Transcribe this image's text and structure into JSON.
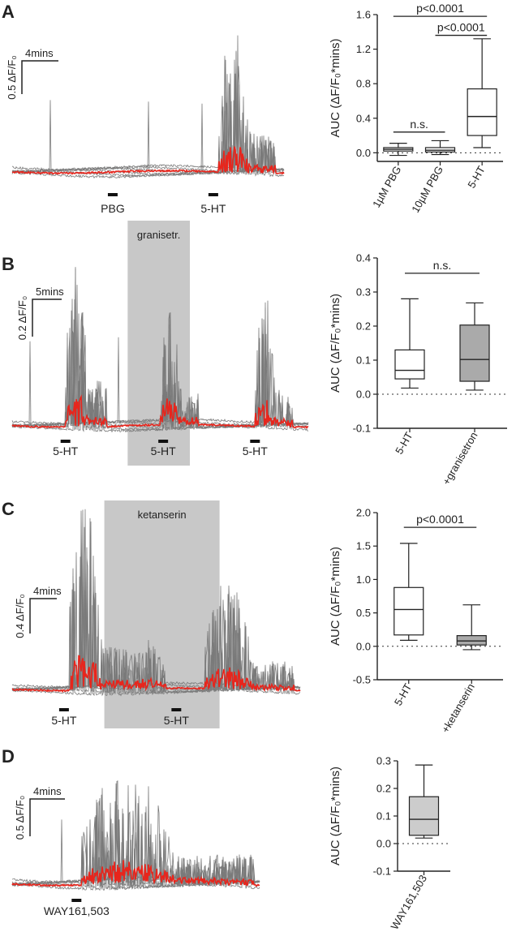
{
  "figure": {
    "panels": [
      {
        "letter": "A",
        "trace": {
          "scale_y_label": "0.5 ΔF/F₀",
          "scale_x_label": "4mins",
          "stimuli": [
            {
              "label": "PBG",
              "time": 0.37
            },
            {
              "label": "5-HT",
              "time": 0.74
            }
          ],
          "shaded": null,
          "activity": [
            {
              "start": 0.76,
              "end": 0.97,
              "amp": 0.95
            }
          ],
          "sparse_spikes": [
            0.14,
            0.5,
            0.7
          ]
        }
      },
      {
        "letter": "B",
        "trace": {
          "scale_y_label": "0.2 ΔF/F₀",
          "scale_x_label": "5mins",
          "stimuli": [
            {
              "label": "5-HT",
              "time": 0.18
            },
            {
              "label": "5-HT",
              "time": 0.51
            },
            {
              "label": "5-HT",
              "time": 0.82
            }
          ],
          "shaded": {
            "label": "granisetr.",
            "start": 0.39,
            "end": 0.6
          },
          "activity": [
            {
              "start": 0.18,
              "end": 0.32,
              "amp": 0.9
            },
            {
              "start": 0.5,
              "end": 0.63,
              "amp": 0.7
            },
            {
              "start": 0.82,
              "end": 0.95,
              "amp": 0.75
            }
          ],
          "sparse_spikes": [
            0.06,
            0.36
          ]
        }
      },
      {
        "letter": "C",
        "trace": {
          "scale_y_label": "0.4 ΔF/F₀",
          "scale_x_label": "4mins",
          "stimuli": [
            {
              "label": "5-HT",
              "time": 0.18
            },
            {
              "label": "5-HT",
              "time": 0.57
            }
          ],
          "shaded": {
            "label": "ketanserin",
            "start": 0.32,
            "end": 0.72
          },
          "activity": [
            {
              "start": 0.2,
              "end": 0.4,
              "amp": 1.0
            },
            {
              "start": 0.4,
              "end": 0.66,
              "amp": 0.25
            },
            {
              "start": 0.67,
              "end": 0.98,
              "amp": 0.55
            }
          ],
          "sparse_spikes": []
        }
      },
      {
        "letter": "D",
        "trace": {
          "scale_y_label": "0.5 ΔF/F₀",
          "scale_x_label": "4mins",
          "stimuli": [
            {
              "label": "WAY161,503",
              "time": 0.26
            }
          ],
          "shaded": null,
          "activity": [
            {
              "start": 0.28,
              "end": 0.98,
              "amp": 0.8
            }
          ],
          "sparse_spikes": [
            0.2
          ]
        }
      }
    ]
  },
  "chart_data": [
    {
      "type": "boxplot",
      "panel": "A",
      "ylabel": "AUC (ΔF/F₀*mins)",
      "ylim": [
        -0.1,
        1.6
      ],
      "yticks": [
        0.0,
        0.4,
        0.8,
        1.2,
        1.6
      ],
      "yticklabels": [
        "0.0",
        "0.4",
        "0.8",
        "1.2",
        "1.6"
      ],
      "categories": [
        "1µM PBG",
        "10µM PBG",
        "5-HT"
      ],
      "boxes": [
        {
          "min": -0.03,
          "q1": 0.02,
          "median": 0.04,
          "q3": 0.06,
          "max": 0.11,
          "fill": "#ffffff"
        },
        {
          "min": -0.02,
          "q1": 0.01,
          "median": 0.03,
          "q3": 0.06,
          "max": 0.14,
          "fill": "#ffffff"
        },
        {
          "min": 0.06,
          "q1": 0.2,
          "median": 0.42,
          "q3": 0.74,
          "max": 1.32,
          "fill": "#ffffff"
        }
      ],
      "comparisons": [
        {
          "label": "p<0.0001",
          "from": 0,
          "to": 2,
          "y": 1.58
        },
        {
          "label": "p<0.0001",
          "from": 1,
          "to": 2,
          "y": 1.36
        },
        {
          "label": "n.s.",
          "from": 0,
          "to": 1,
          "y": 0.24
        }
      ]
    },
    {
      "type": "boxplot",
      "panel": "B",
      "ylabel": "AUC (ΔF/F₀*mins)",
      "ylim": [
        -0.1,
        0.4
      ],
      "yticks": [
        -0.1,
        0.0,
        0.1,
        0.2,
        0.3,
        0.4
      ],
      "yticklabels": [
        "-0.1",
        "0.0",
        "0.1",
        "0.2",
        "0.3",
        "0.4"
      ],
      "categories": [
        "5-HT",
        "+granisetron"
      ],
      "boxes": [
        {
          "min": 0.018,
          "q1": 0.045,
          "median": 0.07,
          "q3": 0.13,
          "max": 0.28,
          "fill": "#ffffff"
        },
        {
          "min": 0.012,
          "q1": 0.038,
          "median": 0.102,
          "q3": 0.203,
          "max": 0.268,
          "fill": "#aaaaaa"
        }
      ],
      "comparisons": [
        {
          "label": "n.s.",
          "from": 0,
          "to": 1,
          "y": 0.355
        }
      ]
    },
    {
      "type": "boxplot",
      "panel": "C",
      "ylabel": "AUC (ΔF/F₀*mins)",
      "ylim": [
        -0.5,
        2.0
      ],
      "yticks": [
        -0.5,
        0.0,
        0.5,
        1.0,
        1.5,
        2.0
      ],
      "yticklabels": [
        "-0.5",
        "0.0",
        "0.5",
        "1.0",
        "1.5",
        "2.0"
      ],
      "categories": [
        "5-HT",
        "+ketanserin"
      ],
      "boxes": [
        {
          "min": 0.09,
          "q1": 0.17,
          "median": 0.55,
          "q3": 0.88,
          "max": 1.54,
          "fill": "#ffffff"
        },
        {
          "min": -0.05,
          "q1": 0.02,
          "median": 0.08,
          "q3": 0.16,
          "max": 0.62,
          "fill": "#aaaaaa"
        }
      ],
      "comparisons": [
        {
          "label": "p<0.0001",
          "from": 0,
          "to": 1,
          "y": 1.78
        }
      ]
    },
    {
      "type": "boxplot",
      "panel": "D",
      "ylabel": "AUC (ΔF/F₀*mins)",
      "ylim": [
        -0.1,
        0.3
      ],
      "yticks": [
        -0.1,
        0.0,
        0.1,
        0.2,
        0.3
      ],
      "yticklabels": [
        "-0.1",
        "0.0",
        "0.1",
        "0.2",
        "0.3"
      ],
      "categories": [
        "WAY161,503"
      ],
      "boxes": [
        {
          "min": 0.02,
          "q1": 0.03,
          "median": 0.088,
          "q3": 0.17,
          "max": 0.285,
          "fill": "#cccccc"
        }
      ],
      "comparisons": []
    }
  ],
  "colors": {
    "trace_gray": "#7a7a7a",
    "trace_mean": "#e8251c",
    "shade": "#c8c8c8",
    "axis": "#222222"
  }
}
